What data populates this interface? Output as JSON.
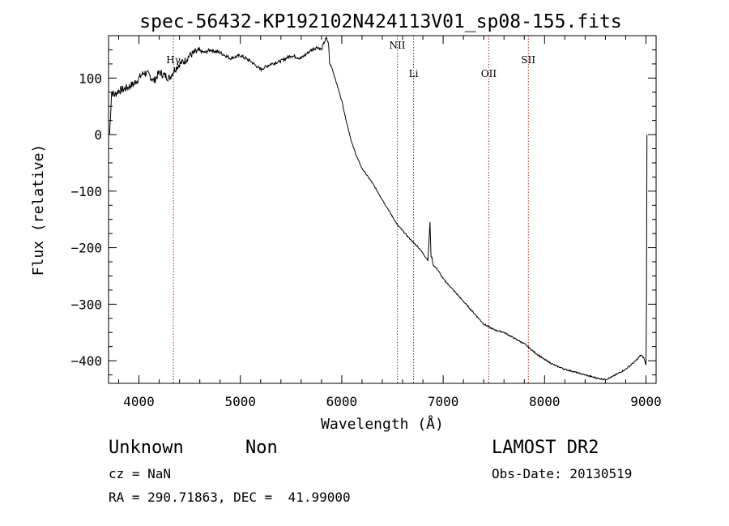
{
  "chart_data": {
    "type": "line",
    "title": "spec-56432-KP192102N424113V01_sp08-155.fits",
    "xlabel": "Wavelength (Å)",
    "ylabel": "Flux (relative)",
    "xlim": [
      3700,
      9100
    ],
    "ylim": [
      -440,
      175
    ],
    "x_ticks": [
      4000,
      5000,
      6000,
      7000,
      8000,
      9000
    ],
    "y_ticks": [
      100,
      0,
      -100,
      -200,
      -300,
      -400
    ],
    "x_tick_labels": [
      "4000",
      "5000",
      "6000",
      "7000",
      "8000",
      "9000"
    ],
    "y_tick_labels": [
      "100",
      "0",
      "−100",
      "−200",
      "−300",
      "−400"
    ],
    "grid": false,
    "line_color": "#000000",
    "marker_color": "#b22222",
    "lines": [
      {
        "name": "Hγ",
        "x": 4340,
        "label": "Hγ"
      },
      {
        "name": "NII",
        "x": 6548,
        "label": "NII"
      },
      {
        "name": "Li",
        "x": 6708,
        "label": "Li"
      },
      {
        "name": "OII",
        "x": 7450,
        "label": "OII"
      },
      {
        "name": "SII",
        "x": 7840,
        "label": "SII"
      }
    ],
    "series": [
      {
        "x": [
          3710,
          3730,
          3760,
          3800,
          3850,
          3900,
          3950,
          4000,
          4050,
          4100,
          4150,
          4200,
          4250,
          4300,
          4350,
          4400,
          4450,
          4500,
          4550,
          4600,
          4650,
          4700,
          4800,
          4900,
          5000,
          5100,
          5200,
          5300,
          5400,
          5500,
          5600,
          5700,
          5760,
          5800,
          5830,
          5850,
          5870,
          5880,
          5900,
          5950,
          6000,
          6050,
          6100,
          6150,
          6200,
          6300,
          6400,
          6500,
          6550,
          6600,
          6650,
          6700,
          6750,
          6800,
          6850,
          6870,
          6880,
          6890,
          6900,
          6950,
          7000,
          7100,
          7200,
          7300,
          7400,
          7450,
          7500,
          7600,
          7700,
          7800,
          7900,
          8000,
          8100,
          8200,
          8300,
          8400,
          8500,
          8550,
          8600,
          8650,
          8700,
          8800,
          8900,
          8950,
          8980,
          9000,
          9005,
          9010
        ],
        "y": [
          0,
          75,
          70,
          78,
          80,
          85,
          90,
          100,
          110,
          105,
          95,
          110,
          105,
          100,
          115,
          125,
          130,
          140,
          145,
          148,
          145,
          150,
          145,
          135,
          140,
          130,
          115,
          125,
          130,
          140,
          135,
          150,
          155,
          150,
          165,
          170,
          160,
          125,
          120,
          90,
          60,
          20,
          -15,
          -40,
          -60,
          -85,
          -115,
          -145,
          -160,
          -170,
          -180,
          -190,
          -198,
          -210,
          -222,
          -155,
          -215,
          -218,
          -230,
          -240,
          -255,
          -275,
          -295,
          -315,
          -335,
          -340,
          -345,
          -350,
          -360,
          -370,
          -385,
          -398,
          -408,
          -415,
          -420,
          -425,
          -430,
          -432,
          -433,
          -430,
          -425,
          -415,
          -400,
          -390,
          -395,
          -408,
          -300,
          0
        ]
      }
    ]
  },
  "footer": {
    "object_class": "Unknown",
    "object_subclass": "Non",
    "cz": "cz = NaN",
    "coords": "RA = 290.71863, DEC =  41.99000",
    "survey": "LAMOST DR2",
    "obs_date": "Obs-Date: 20130519"
  }
}
